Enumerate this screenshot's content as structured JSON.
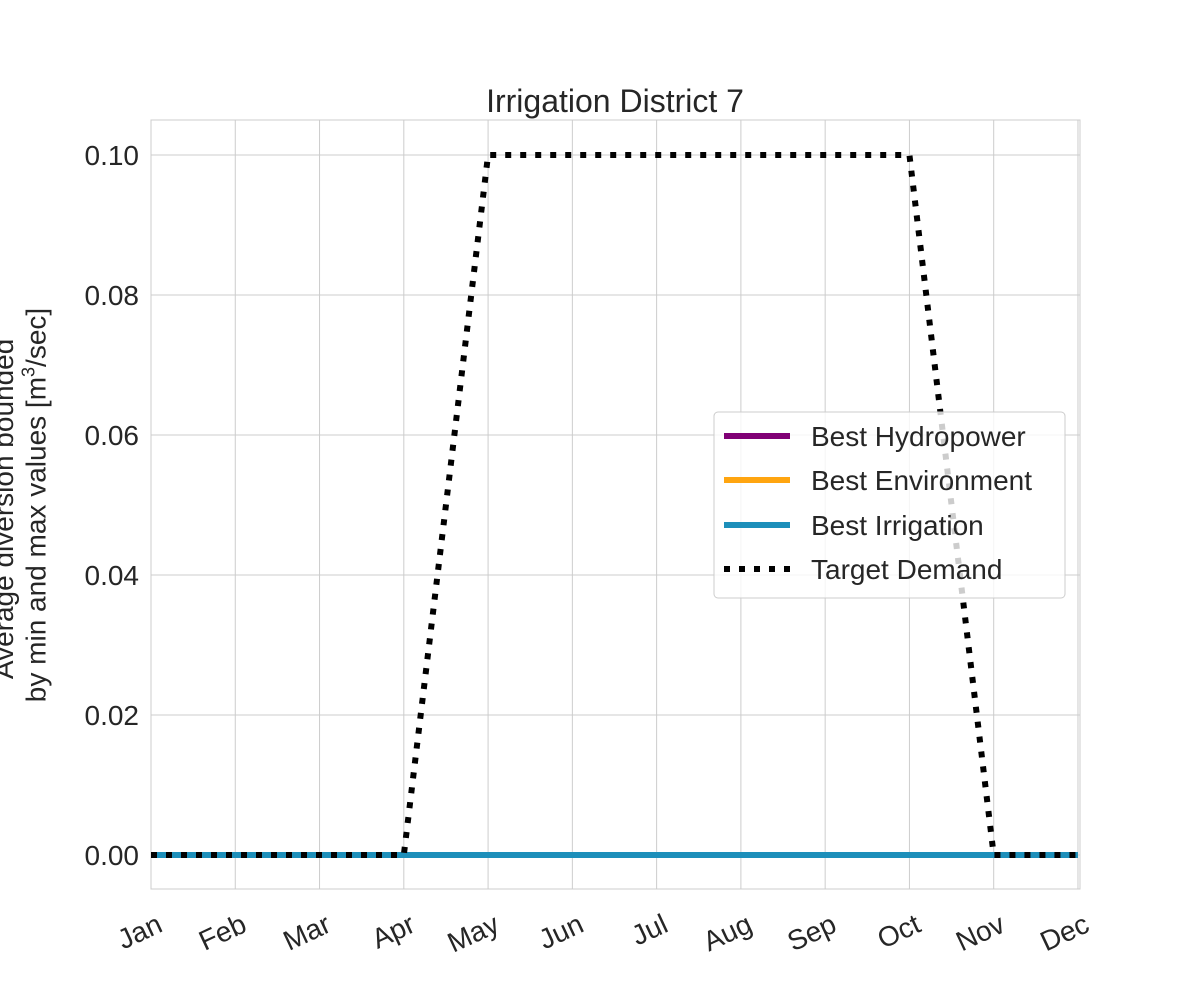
{
  "chart_data": {
    "type": "line",
    "title": "Irrigation District 7",
    "ylabel_line1": "Average diversion bounded",
    "ylabel_line2_prefix": "by min and max values [m",
    "ylabel_line2_sup": "3",
    "ylabel_line2_suffix": "/sec]",
    "categories": [
      "Jan",
      "Feb",
      "Mar",
      "Apr",
      "May",
      "Jun",
      "Jul",
      "Aug",
      "Sep",
      "Oct",
      "Nov",
      "Dec"
    ],
    "ylim": [
      -0.005,
      0.105
    ],
    "yticks": [
      0.0,
      0.02,
      0.04,
      0.06,
      0.08,
      0.1
    ],
    "ytick_labels": [
      "0.00",
      "0.02",
      "0.04",
      "0.06",
      "0.08",
      "0.10"
    ],
    "grid": true,
    "legend_position": "center-right",
    "series": [
      {
        "name": "Best Hydropower",
        "color": "#800075",
        "style": "solid",
        "values": [
          0,
          0,
          0,
          0,
          0,
          0,
          0,
          0,
          0,
          0,
          0,
          0
        ]
      },
      {
        "name": "Best Environment",
        "color": "#ffa510",
        "style": "solid",
        "values": [
          0,
          0,
          0,
          0,
          0,
          0,
          0,
          0,
          0,
          0,
          0,
          0
        ]
      },
      {
        "name": "Best Irrigation",
        "color": "#1d8fba",
        "style": "solid",
        "values": [
          0,
          0,
          0,
          0,
          0,
          0,
          0,
          0,
          0,
          0,
          0,
          0
        ]
      },
      {
        "name": "Target Demand",
        "color": "#000000",
        "style": "dotted",
        "values": [
          0,
          0,
          0,
          0,
          0.1,
          0.1,
          0.1,
          0.1,
          0.1,
          0.1,
          0,
          0
        ]
      }
    ]
  }
}
